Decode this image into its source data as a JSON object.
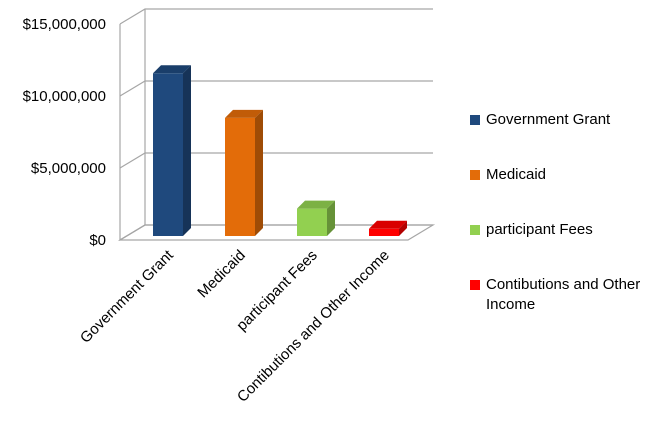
{
  "chart_data": {
    "type": "bar",
    "categories": [
      "Government Grant",
      "Medicaid",
      "participant Fees",
      "Contibutions and Other Income"
    ],
    "values": [
      11300000,
      8200000,
      1900000,
      500000
    ],
    "ylim": [
      0,
      15000000
    ],
    "yticks": [
      "$0",
      "$5,000,000",
      "$10,000,000",
      "$15,000,000"
    ],
    "ytick_values": [
      0,
      5000000,
      10000000,
      15000000
    ],
    "colors": [
      "#1f497d",
      "#e36c09",
      "#92d050",
      "#ff0000"
    ],
    "grid": true,
    "legend_position": "right",
    "style": "3d-column"
  },
  "legend": {
    "items": [
      {
        "label": "Government Grant",
        "color": "#1f497d"
      },
      {
        "label": "Medicaid",
        "color": "#e36c09"
      },
      {
        "label": "participant Fees",
        "color": "#92d050"
      },
      {
        "label": "Contibutions and Other Income",
        "color": "#ff0000"
      }
    ]
  }
}
